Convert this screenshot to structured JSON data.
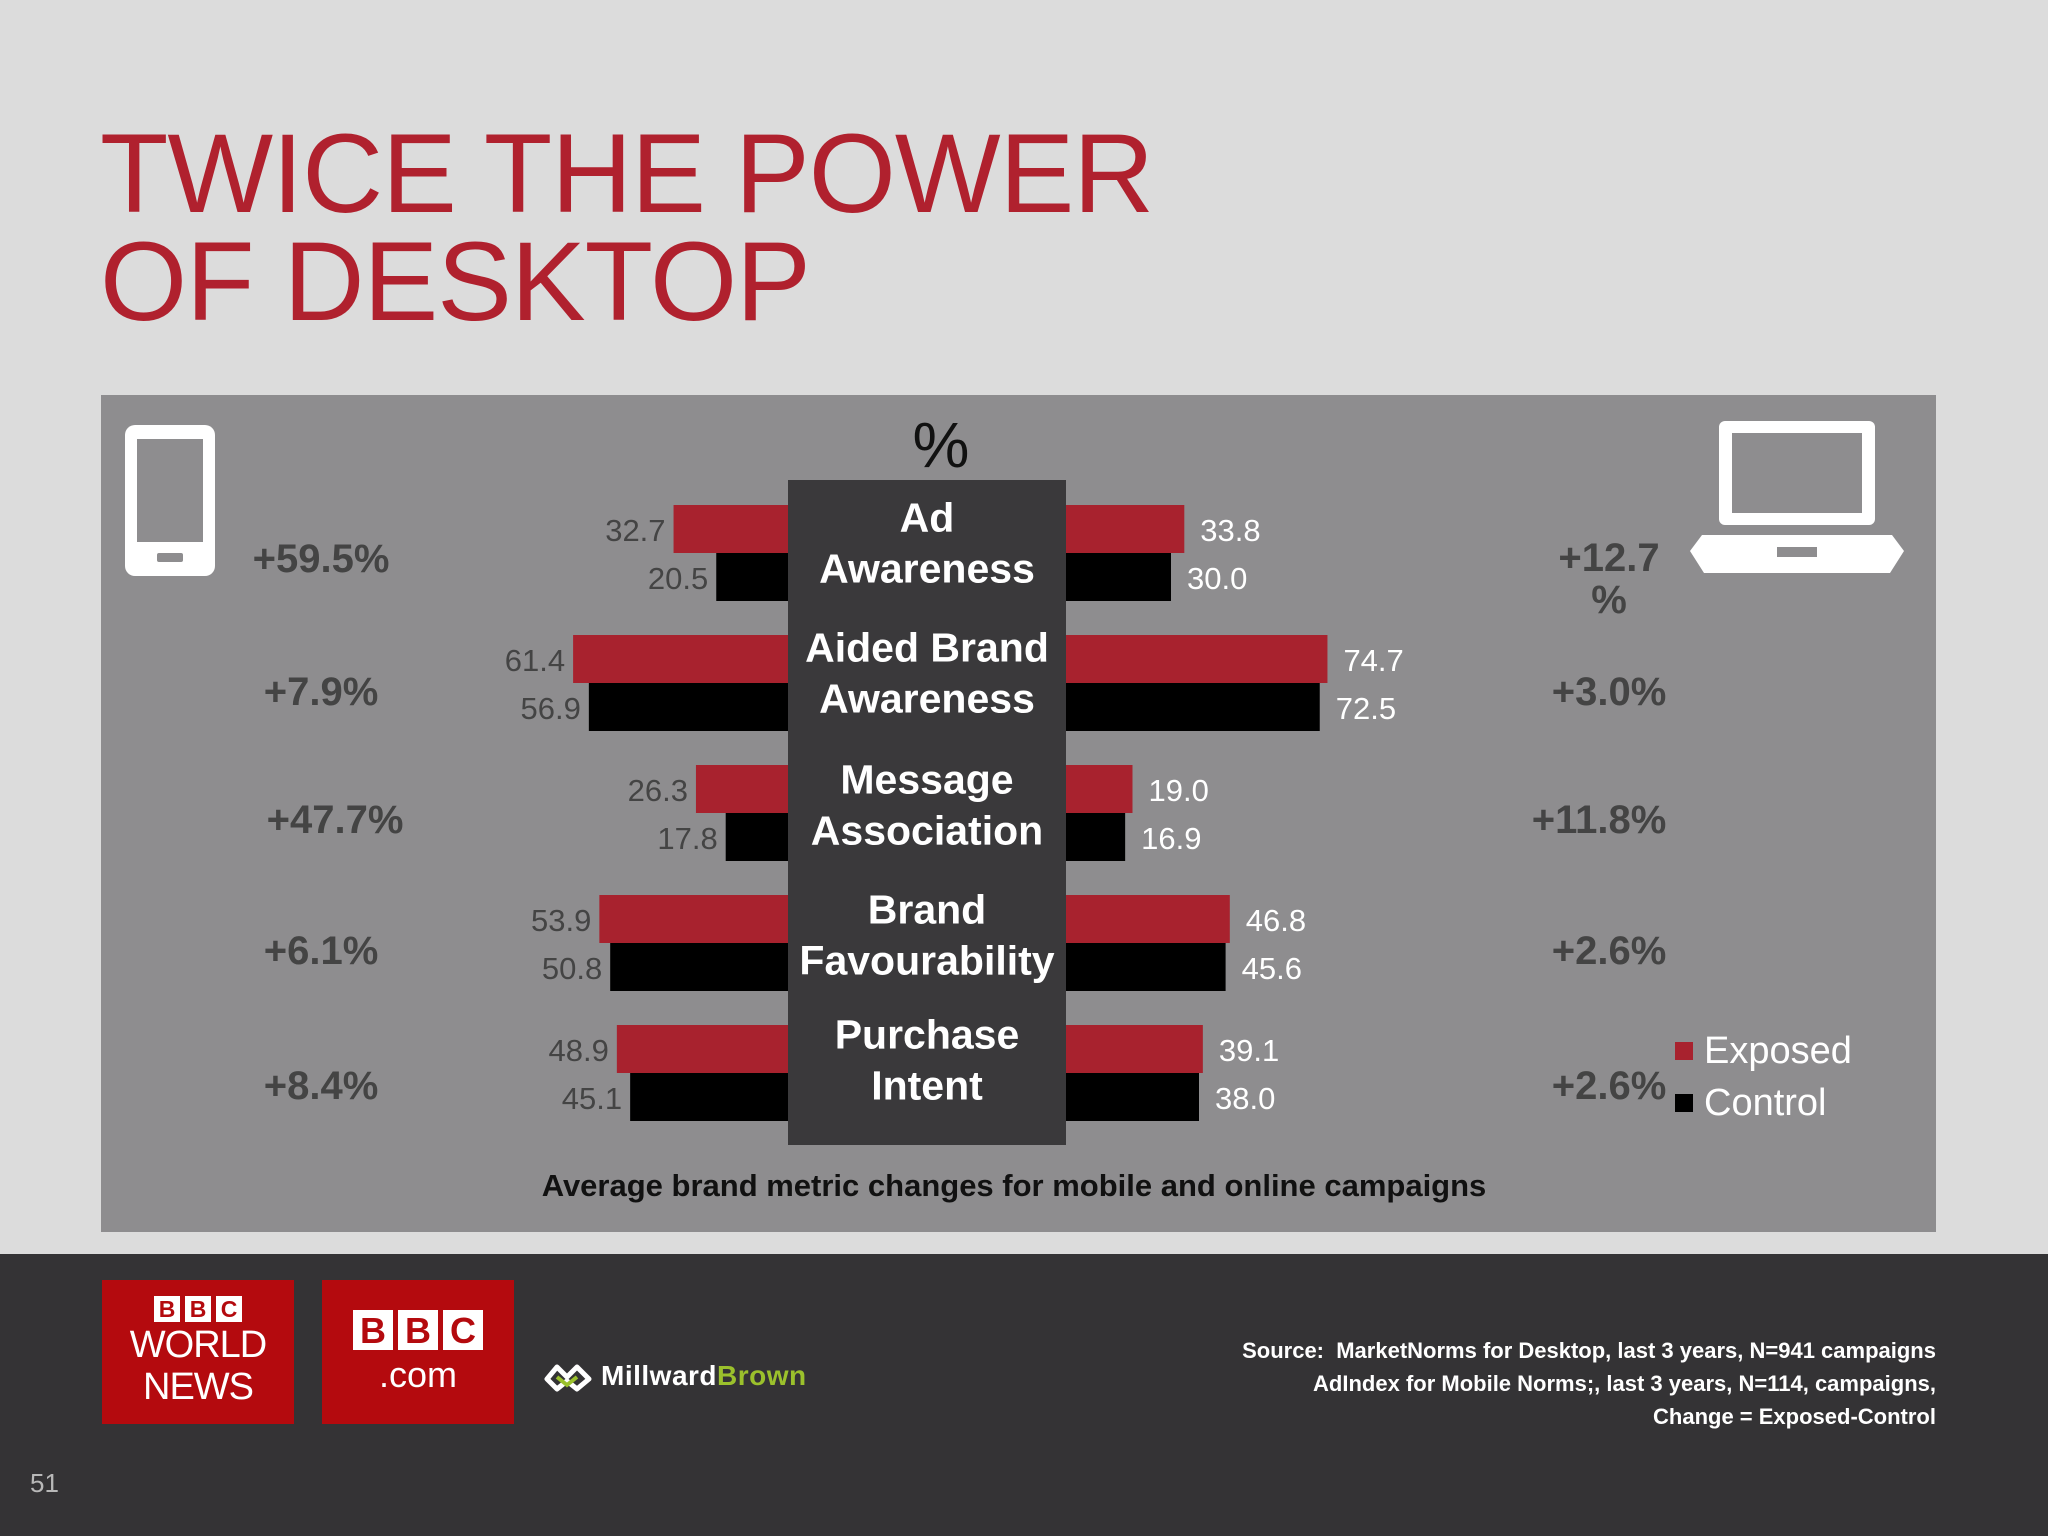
{
  "title_lines": [
    "TWICE THE POWER",
    "OF DESKTOP"
  ],
  "colors": {
    "exposed": "#a8222e",
    "control": "#000000",
    "title": "#b0212e",
    "label_box": "#3a393b"
  },
  "chart_data": {
    "type": "bar",
    "orientation": "horizontal-butterfly",
    "unit_label": "%",
    "subtitle": "Average brand metric changes for mobile and online campaigns",
    "categories": [
      "Ad Awareness",
      "Aided Brand Awareness",
      "Message Association",
      "Brand Favourability",
      "Purchase Intent"
    ],
    "category_lines": [
      [
        "Ad",
        "Awareness"
      ],
      [
        "Aided Brand",
        "Awareness"
      ],
      [
        "Message",
        "Association"
      ],
      [
        "Brand",
        "Favourability"
      ],
      [
        "Purchase",
        "Intent"
      ]
    ],
    "panels": [
      {
        "side": "left",
        "device": "mobile",
        "series": [
          {
            "name": "Exposed",
            "values": [
              32.7,
              61.4,
              26.3,
              53.9,
              48.9
            ]
          },
          {
            "name": "Control",
            "values": [
              20.5,
              56.9,
              17.8,
              50.8,
              45.1
            ]
          }
        ],
        "value_labels": {
          "exposed": [
            "32.7",
            "61.4",
            "26.3",
            "53.9",
            "48.9"
          ],
          "control": [
            "20.5",
            "56.9",
            "17.8",
            "50.8",
            "45.1"
          ]
        },
        "changes": [
          [
            "+59.5%"
          ],
          [
            "+7.9%"
          ],
          [
            "+47.7%"
          ],
          [
            "+6.1%"
          ],
          [
            "+8.4%"
          ]
        ]
      },
      {
        "side": "right",
        "device": "laptop",
        "series": [
          {
            "name": "Exposed",
            "values": [
              33.8,
              74.7,
              19.0,
              46.8,
              39.1
            ]
          },
          {
            "name": "Control",
            "values": [
              30.0,
              72.5,
              16.9,
              45.6,
              38.0
            ]
          }
        ],
        "value_labels": {
          "exposed": [
            "33.8",
            "74.7",
            "19.0",
            "46.8",
            "39.1"
          ],
          "control": [
            "30.0",
            "72.5",
            "16.9",
            "45.6",
            "38.0"
          ]
        },
        "changes": [
          [
            "+12.7",
            "%"
          ],
          [
            "+3.0%"
          ],
          [
            "+11.8%"
          ],
          [
            "+2.6%"
          ],
          [
            "+2.6%"
          ]
        ]
      }
    ],
    "legend": {
      "position": "bottom-right",
      "items": [
        "Exposed",
        "Control"
      ]
    }
  },
  "footer": {
    "logos": {
      "bbc_world_news": {
        "blocks": [
          "B",
          "B",
          "C"
        ],
        "lines": [
          "WORLD",
          "NEWS"
        ]
      },
      "bbc_com": {
        "blocks": [
          "B",
          "B",
          "C"
        ],
        "text": ".com"
      },
      "millward_brown": {
        "part1": "Millward",
        "part2": "Brown"
      }
    },
    "source_lines": [
      "Source:  MarketNorms for Desktop, last 3 years, N=941 campaigns",
      "AdIndex for Mobile Norms;, last 3 years, N=114, campaigns,",
      "Change = Exposed-Control"
    ],
    "page_number": "51"
  },
  "icons": [
    "mobile-phone-icon",
    "laptop-icon",
    "millward-brown-logo-icon"
  ]
}
